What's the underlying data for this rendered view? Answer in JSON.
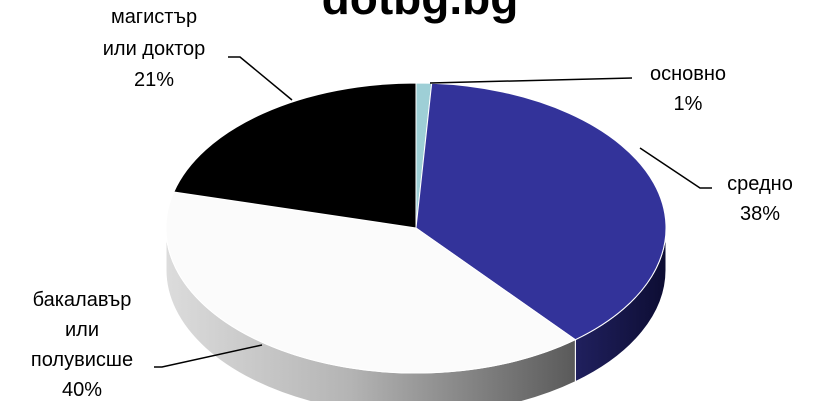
{
  "chart_data": {
    "type": "pie",
    "title": "dotbg.bg",
    "slices": [
      {
        "name": "основно",
        "value": 1,
        "label_lines": [
          "основно",
          "1%"
        ],
        "color": "#9ECFD6"
      },
      {
        "name": "средно",
        "value": 38,
        "label_lines": [
          "средно",
          "38%"
        ],
        "color": "#33339A"
      },
      {
        "name": "бакалавър или полувисше",
        "value": 40,
        "label_lines": [
          "бакалавър",
          "или",
          "полувисше",
          "40%"
        ],
        "color": "#FBFBFB"
      },
      {
        "name": "магистър или доктор",
        "value": 21,
        "label_lines": [
          "магистър",
          "или доктор",
          "21%"
        ],
        "color": "#000000"
      }
    ],
    "legend": "none",
    "style": "3d-pie"
  }
}
